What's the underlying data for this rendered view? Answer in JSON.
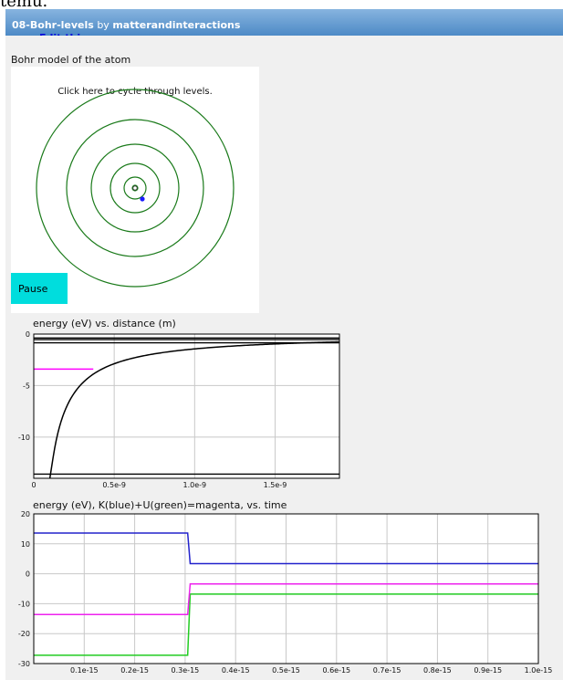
{
  "top_clip_text": "temu.",
  "header": {
    "program_name": "08-Bohr-levels",
    "by_text": " by ",
    "author": "matterandinteractions",
    "edit_link": "Edit this program"
  },
  "scene": {
    "title": "Bohr model of the atom",
    "hint": "Click here to cycle through levels.",
    "pause_label": "Pause",
    "orbit_color": "#1a7a1a",
    "electron_color": "#1a1aff",
    "orbit_levels": [
      1,
      2,
      3,
      4,
      5,
      6
    ]
  },
  "chart_data": [
    {
      "type": "line",
      "title": "energy (eV) vs. distance (m)",
      "xlim": [
        0,
        1.9e-09
      ],
      "ylim": [
        -14,
        0
      ],
      "x_ticks": [
        {
          "value": 0,
          "label": "0"
        },
        {
          "value": 5e-10,
          "label": "0.5e-9"
        },
        {
          "value": 1e-09,
          "label": "1.0e-9"
        },
        {
          "value": 1.5e-09,
          "label": "1.5e-9"
        }
      ],
      "y_ticks": [
        {
          "value": 0,
          "label": "0"
        },
        {
          "value": -5,
          "label": "-5"
        },
        {
          "value": -10,
          "label": "-10"
        }
      ],
      "grid": true,
      "series": [
        {
          "color": "#000000",
          "formula": "-1.44e-9 / r"
        },
        {
          "color": "#ff00ff",
          "x": [
            0,
            3.7e-10
          ],
          "y": [
            -3.4,
            -3.4
          ]
        }
      ],
      "energy_levels": [
        -13.6,
        -0.85,
        -0.54,
        -0.38
      ],
      "level_color": "#000000"
    },
    {
      "type": "line",
      "title": "energy (eV), K(blue)+U(green)=magenta, vs. time",
      "xlim": [
        0,
        1e-15
      ],
      "ylim": [
        -30,
        20
      ],
      "x_ticks": [
        {
          "value": 1e-16,
          "label": "0.1e-15"
        },
        {
          "value": 2e-16,
          "label": "0.2e-15"
        },
        {
          "value": 3e-16,
          "label": "0.3e-15"
        },
        {
          "value": 4e-16,
          "label": "0.4e-15"
        },
        {
          "value": 5e-16,
          "label": "0.5e-15"
        },
        {
          "value": 6e-16,
          "label": "0.6e-15"
        },
        {
          "value": 7e-16,
          "label": "0.7e-15"
        },
        {
          "value": 8e-16,
          "label": "0.8e-15"
        },
        {
          "value": 9e-16,
          "label": "0.9e-15"
        },
        {
          "value": 1e-15,
          "label": "1.0e-15"
        }
      ],
      "y_ticks": [
        {
          "value": 20,
          "label": "20"
        },
        {
          "value": 10,
          "label": "10"
        },
        {
          "value": 0,
          "label": "0"
        },
        {
          "value": -10,
          "label": "-10"
        },
        {
          "value": -20,
          "label": "-20"
        },
        {
          "value": -30,
          "label": "-30"
        }
      ],
      "grid": true,
      "series": [
        {
          "color": "#2222cc",
          "x": [
            0,
            3.05e-16,
            3.1e-16,
            1e-15
          ],
          "y": [
            13.6,
            13.6,
            3.4,
            3.4
          ]
        },
        {
          "color": "#22cc22",
          "x": [
            0,
            3.05e-16,
            3.1e-16,
            1e-15
          ],
          "y": [
            -27.2,
            -27.2,
            -6.8,
            -6.8
          ]
        },
        {
          "color": "#ee22ee",
          "x": [
            0,
            3.05e-16,
            3.1e-16,
            1e-15
          ],
          "y": [
            -13.6,
            -13.6,
            -3.4,
            -3.4
          ]
        }
      ]
    }
  ]
}
